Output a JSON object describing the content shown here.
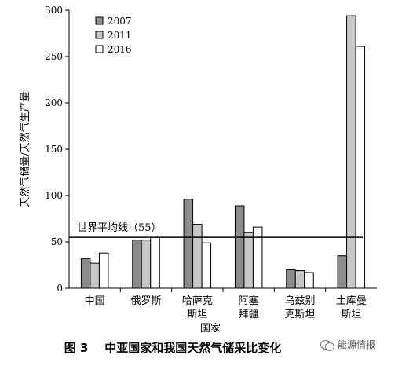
{
  "chart_data": {
    "type": "bar",
    "ylabel": "天然气储量/天然气生产量",
    "xlabel": "国家",
    "ylim": [
      0,
      300
    ],
    "yticks": [
      "0",
      "50",
      "100",
      "150",
      "200",
      "250",
      "300"
    ],
    "categories": [
      [
        "中国"
      ],
      [
        "俄罗斯"
      ],
      [
        "哈萨克",
        "斯坦"
      ],
      [
        "阿塞",
        "拜疆"
      ],
      [
        "乌兹别",
        "克斯坦"
      ],
      [
        "土库曼",
        "斯坦"
      ]
    ],
    "series": [
      {
        "name": "2007",
        "color": "#8c8c8c",
        "values": [
          32,
          52,
          96,
          89,
          20,
          35
        ]
      },
      {
        "name": "2011",
        "color": "#c8c8c8",
        "values": [
          27,
          52,
          69,
          60,
          19,
          294
        ]
      },
      {
        "name": "2016",
        "color": "#ffffff",
        "values": [
          38,
          55,
          49,
          66,
          17,
          261
        ]
      }
    ],
    "reference_line": {
      "value": 55,
      "label": "世界平均线（55）"
    },
    "legend_position": "top-left",
    "grid": false
  },
  "caption": "图 3    中亚国家和我国天然气储采比变化",
  "watermark": "能源情报"
}
